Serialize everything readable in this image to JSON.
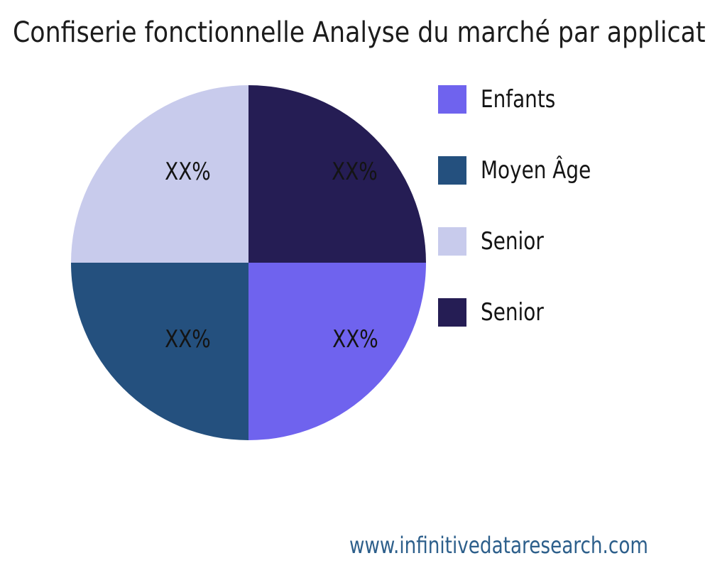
{
  "chart_data": {
    "type": "pie",
    "title": "Confiserie fonctionnelle Analyse du marché par applicat",
    "slices": [
      {
        "label": "Enfants",
        "value": 25,
        "display": "XX%",
        "color": "#6F63EE"
      },
      {
        "label": "Moyen Âge",
        "value": 25,
        "display": "XX%",
        "color": "#24507E"
      },
      {
        "label": "Senior",
        "value": 25,
        "display": "XX%",
        "color": "#C8CBEC"
      },
      {
        "label": "Senior",
        "value": 25,
        "display": "XX%",
        "color": "#251D54"
      }
    ],
    "pie_order_clockwise_from_top": [
      3,
      0,
      1,
      2
    ],
    "legend_position": "right",
    "title_color": "#1C1C1C",
    "label_color": "#141414",
    "background_color": "#FFFFFF"
  },
  "footer": {
    "url": "www.infinitivedataresearch.com",
    "color": "#2D5F8B"
  }
}
